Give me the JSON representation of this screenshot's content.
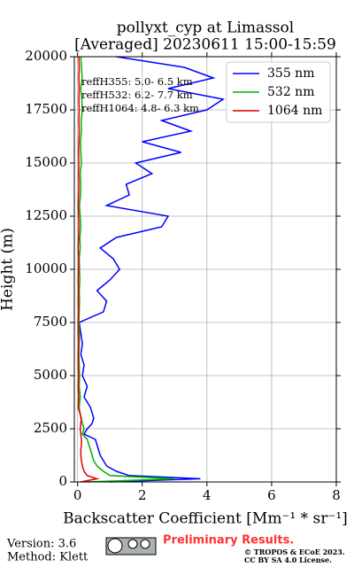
{
  "chart_data": {
    "type": "line",
    "orientation": "vertical",
    "title": "pollyxt_cyp at Limassol",
    "subtitle": "[Averaged] 20230611 15:00-15:59",
    "xlabel": "Backscatter Coefficient [Mm⁻¹ * sr⁻¹]",
    "ylabel": "Height (m)",
    "xlim": [
      -0.1,
      8
    ],
    "xticks": [
      0,
      2,
      4,
      6,
      8
    ],
    "ylim": [
      0,
      20000
    ],
    "yticks": [
      0,
      2500,
      5000,
      7500,
      10000,
      12500,
      15000,
      17500,
      20000
    ],
    "grid": true,
    "legend": "upper right",
    "annotations": [
      "reffH355:  5.0- 6.5 km",
      "reffH532:  6.2- 7.7 km",
      "reffH1064:  4.8- 6.3 km"
    ],
    "y": [
      0,
      150,
      300,
      500,
      750,
      1000,
      1250,
      1500,
      1750,
      2000,
      2250,
      2500,
      2750,
      3000,
      3500,
      4000,
      4500,
      5000,
      5500,
      6000,
      6500,
      7000,
      7500,
      8000,
      8500,
      9000,
      9500,
      10000,
      10500,
      11000,
      11500,
      12000,
      12500,
      13000,
      13500,
      14000,
      14500,
      15000,
      15500,
      16000,
      16500,
      17000,
      17500,
      18000,
      18500,
      19000,
      19500,
      20000
    ],
    "series": [
      {
        "name": "355 nm",
        "color": "#0000ff",
        "values": [
          1.0,
          3.8,
          1.6,
          1.2,
          0.9,
          0.8,
          0.7,
          0.65,
          0.6,
          0.55,
          0.2,
          0.3,
          0.45,
          0.5,
          0.4,
          0.2,
          0.3,
          0.15,
          0.2,
          0.1,
          0.15,
          0.1,
          0.05,
          0.8,
          0.9,
          0.6,
          1.0,
          1.3,
          1.1,
          0.7,
          1.2,
          2.6,
          2.8,
          0.9,
          1.6,
          1.5,
          2.3,
          1.8,
          3.2,
          2.0,
          3.5,
          2.6,
          4.0,
          4.5,
          2.8,
          4.2,
          3.3,
          1.2
        ]
      },
      {
        "name": "532 nm",
        "color": "#00b000",
        "values": [
          0.3,
          3.0,
          1.0,
          0.8,
          0.6,
          0.5,
          0.45,
          0.4,
          0.35,
          0.3,
          0.15,
          0.2,
          0.15,
          0.1,
          0.05,
          0.08,
          0.05,
          0.06,
          0.05,
          0.04,
          0.05,
          0.06,
          0.04,
          0.05,
          0.06,
          0.05,
          0.07,
          0.06,
          0.05,
          0.08,
          0.07,
          0.1,
          0.08,
          0.06,
          0.09,
          0.1,
          0.08,
          0.12,
          0.1,
          0.09,
          0.12,
          0.11,
          0.15,
          0.13,
          0.1,
          0.14,
          0.12,
          0.1
        ]
      },
      {
        "name": "1064 nm",
        "color": "#e00000",
        "values": [
          0.1,
          0.6,
          0.3,
          0.2,
          0.15,
          0.12,
          0.1,
          0.1,
          0.12,
          0.12,
          0.1,
          0.08,
          0.1,
          0.12,
          0.02,
          0.03,
          0.02,
          0.03,
          0.02,
          0.02,
          0.03,
          0.02,
          0.02,
          0.03,
          0.02,
          0.03,
          0.02,
          0.03,
          0.03,
          0.02,
          0.03,
          0.04,
          0.03,
          0.02,
          0.03,
          0.04,
          0.03,
          0.04,
          0.03,
          0.04,
          0.05,
          0.04,
          0.05,
          0.04,
          0.05,
          0.04,
          0.05,
          0.04
        ]
      }
    ]
  },
  "footer": {
    "version": "Version: 3.6",
    "method": "Method: Klett",
    "status": "Preliminary Results.",
    "copyright": "© TROPOS & ECoE 2023.",
    "license": "CC BY SA 4.0 License."
  }
}
